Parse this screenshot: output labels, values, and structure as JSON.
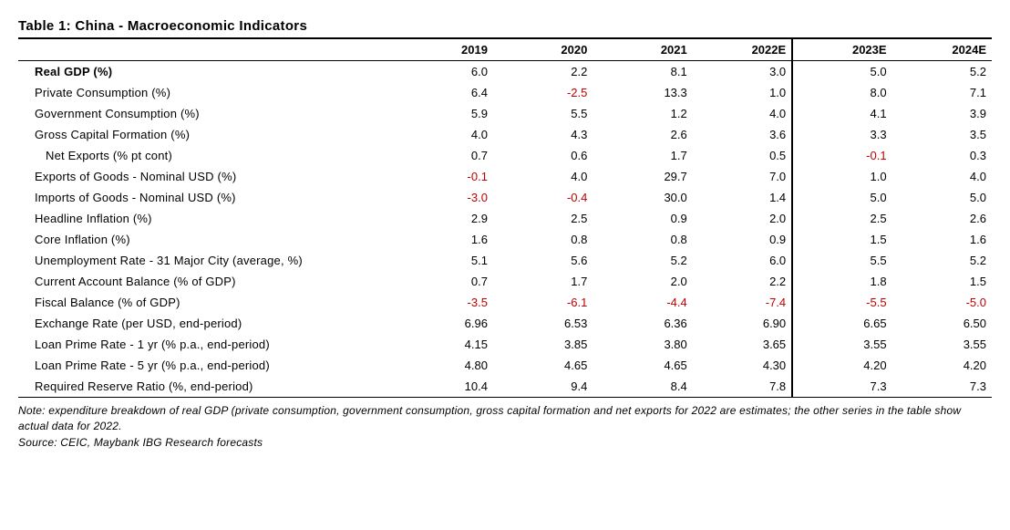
{
  "title": "Table 1: China - Macroeconomic Indicators",
  "columns": [
    "2019",
    "2020",
    "2021",
    "2022E",
    "2023E",
    "2024E"
  ],
  "forecast_start_index": 4,
  "colors": {
    "text": "#000000",
    "negative": "#c00000",
    "background": "#ffffff",
    "border": "#000000"
  },
  "font": {
    "title_size_pt": 15,
    "header_size_pt": 13,
    "body_size_pt": 13,
    "notes_size_pt": 12
  },
  "rows": [
    {
      "label": "Real GDP (%)",
      "values": [
        "6.0",
        "2.2",
        "8.1",
        "3.0",
        "5.0",
        "5.2"
      ],
      "bold": true,
      "indent": 1
    },
    {
      "label": "Private Consumption (%)",
      "values": [
        "6.4",
        "-2.5",
        "13.3",
        "1.0",
        "8.0",
        "7.1"
      ],
      "indent": 1
    },
    {
      "label": "Government Consumption (%)",
      "values": [
        "5.9",
        "5.5",
        "1.2",
        "4.0",
        "4.1",
        "3.9"
      ],
      "indent": 1
    },
    {
      "label": "Gross Capital Formation (%)",
      "values": [
        "4.0",
        "4.3",
        "2.6",
        "3.6",
        "3.3",
        "3.5"
      ],
      "indent": 1
    },
    {
      "label": "Net Exports (% pt cont)",
      "values": [
        "0.7",
        "0.6",
        "1.7",
        "0.5",
        "-0.1",
        "0.3"
      ],
      "indent": 2
    },
    {
      "label": "Exports of Goods - Nominal USD (%)",
      "values": [
        "-0.1",
        "4.0",
        "29.7",
        "7.0",
        "1.0",
        "4.0"
      ],
      "indent": 1
    },
    {
      "label": "Imports of Goods - Nominal USD (%)",
      "values": [
        "-3.0",
        "-0.4",
        "30.0",
        "1.4",
        "5.0",
        "5.0"
      ],
      "indent": 1
    },
    {
      "label": "Headline Inflation (%)",
      "values": [
        "2.9",
        "2.5",
        "0.9",
        "2.0",
        "2.5",
        "2.6"
      ],
      "indent": 1
    },
    {
      "label": "Core Inflation (%)",
      "values": [
        "1.6",
        "0.8",
        "0.8",
        "0.9",
        "1.5",
        "1.6"
      ],
      "indent": 1
    },
    {
      "label": "Unemployment  Rate - 31 Major City (average, %)",
      "values": [
        "5.1",
        "5.6",
        "5.2",
        "6.0",
        "5.5",
        "5.2"
      ],
      "indent": 1
    },
    {
      "label": "Current Account Balance (% of GDP)",
      "values": [
        "0.7",
        "1.7",
        "2.0",
        "2.2",
        "1.8",
        "1.5"
      ],
      "indent": 1
    },
    {
      "label": "Fiscal Balance (% of GDP)",
      "values": [
        "-3.5",
        "-6.1",
        "-4.4",
        "-7.4",
        "-5.5",
        "-5.0"
      ],
      "indent": 1
    },
    {
      "label": "Exchange Rate (per USD, end-period)",
      "values": [
        "6.96",
        "6.53",
        "6.36",
        "6.90",
        "6.65",
        "6.50"
      ],
      "indent": 1
    },
    {
      "label": "Loan Prime Rate - 1 yr (% p.a., end-period)",
      "values": [
        "4.15",
        "3.85",
        "3.80",
        "3.65",
        "3.55",
        "3.55"
      ],
      "indent": 1
    },
    {
      "label": "Loan Prime Rate - 5 yr (% p.a., end-period)",
      "values": [
        "4.80",
        "4.65",
        "4.65",
        "4.30",
        "4.20",
        "4.20"
      ],
      "indent": 1
    },
    {
      "label": "Required Reserve Ratio (%, end-period)",
      "values": [
        "10.4",
        "9.4",
        "8.4",
        "7.8",
        "7.3",
        "7.3"
      ],
      "indent": 1
    }
  ],
  "notes": {
    "line1": "Note: expenditure breakdown of real GDP (private consumption, government consumption, gross capital formation and net exports for 2022 are estimates; the other series in the table show actual data for 2022.",
    "line2": "Source: CEIC, Maybank IBG Research forecasts"
  }
}
